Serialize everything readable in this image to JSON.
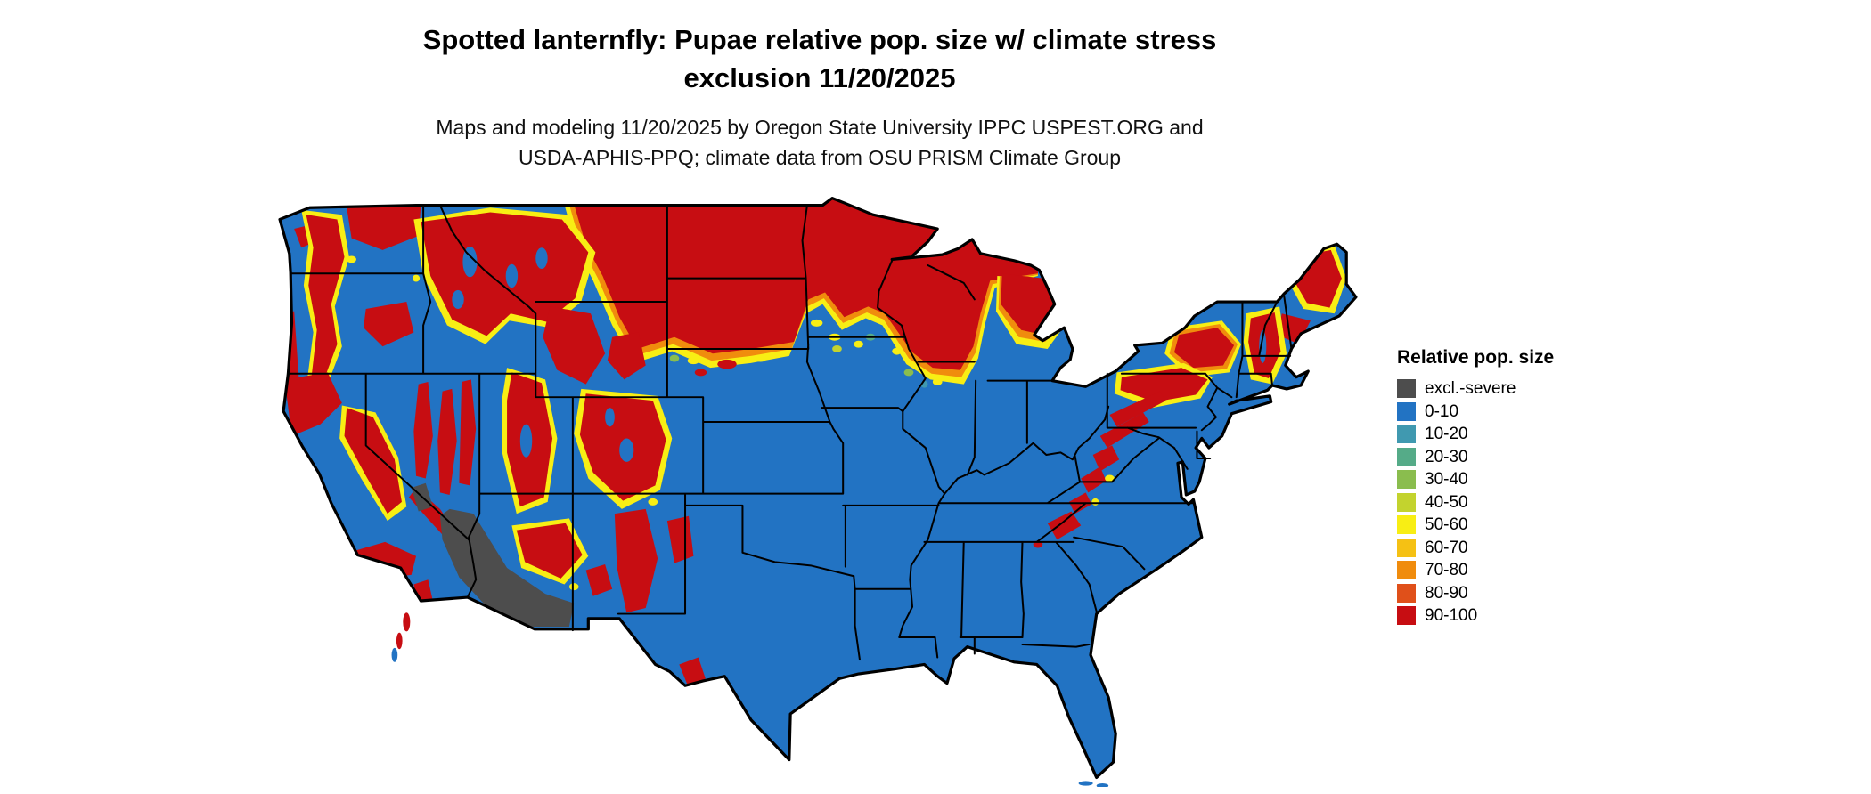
{
  "header": {
    "title_line1": "Spotted lanternfly: Pupae relative pop. size w/ climate stress",
    "title_line2": "exclusion 11/20/2025",
    "subtitle_line1": "Maps and modeling 11/20/2025 by Oregon State University IPPC USPEST.ORG and",
    "subtitle_line2": "USDA-APHIS-PPQ; climate data from OSU PRISM Climate Group"
  },
  "legend": {
    "title": "Relative pop. size",
    "items": [
      {
        "label": "excl.-severe",
        "color": "#4d4d4d"
      },
      {
        "label": "0-10",
        "color": "#2273c3"
      },
      {
        "label": "10-20",
        "color": "#4099b0"
      },
      {
        "label": "20-30",
        "color": "#55ab88"
      },
      {
        "label": "30-40",
        "color": "#8abd4e"
      },
      {
        "label": "40-50",
        "color": "#c3d32e"
      },
      {
        "label": "50-60",
        "color": "#f8ee14"
      },
      {
        "label": "60-70",
        "color": "#f5c114"
      },
      {
        "label": "70-80",
        "color": "#f08c0d"
      },
      {
        "label": "80-90",
        "color": "#e0501a"
      },
      {
        "label": "90-100",
        "color": "#c70d12"
      }
    ]
  }
}
